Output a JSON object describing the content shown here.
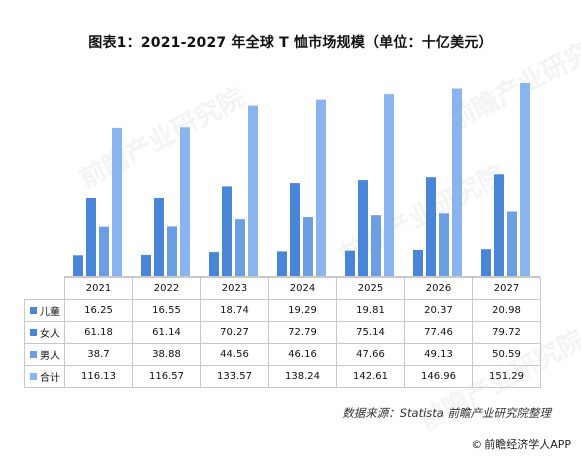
{
  "title": "图表1：2021-2027 年全球 T 恤市场规模（单位：十亿美元）",
  "source": "数据来源：Statista 前瞻产业研究院整理",
  "brand": {
    "icon": "copyright-icon",
    "icon_glyph": "©",
    "text": "前瞻经济学人APP"
  },
  "watermark": "前瞻产业研究院",
  "chart_data": {
    "type": "bar",
    "title": "图表1：2021-2027 年全球 T 恤市场规模（单位：十亿美元）",
    "xlabel": "",
    "ylabel": "",
    "categories": [
      "2021",
      "2022",
      "2023",
      "2024",
      "2025",
      "2026",
      "2027"
    ],
    "series": [
      {
        "name": "儿童",
        "color": "#4a86d8",
        "values": [
          16.25,
          16.55,
          18.74,
          19.29,
          19.81,
          20.37,
          20.98
        ]
      },
      {
        "name": "女人",
        "color": "#4a86d8",
        "values": [
          61.18,
          61.14,
          70.27,
          72.79,
          75.14,
          77.46,
          79.72
        ]
      },
      {
        "name": "男人",
        "color": "#6c9ee3",
        "values": [
          38.7,
          38.88,
          44.56,
          46.16,
          47.66,
          49.13,
          50.59
        ]
      },
      {
        "name": "合计",
        "color": "#8ab4ed",
        "values": [
          116.13,
          116.57,
          133.57,
          138.24,
          142.61,
          146.96,
          151.29
        ]
      }
    ],
    "table": {
      "headers": [
        "2021",
        "2022",
        "2023",
        "2024",
        "2025",
        "2026",
        "2027"
      ],
      "rows": [
        {
          "label": "儿童",
          "cells": [
            "16.25",
            "16.55",
            "18.74",
            "19.29",
            "19.81",
            "20.37",
            "20.98"
          ]
        },
        {
          "label": "女人",
          "cells": [
            "61.18",
            "61.14",
            "70.27",
            "72.79",
            "75.14",
            "77.46",
            "79.72"
          ]
        },
        {
          "label": "男人",
          "cells": [
            "38.7",
            "38.88",
            "44.56",
            "46.16",
            "47.66",
            "49.13",
            "50.59"
          ]
        },
        {
          "label": "合计",
          "cells": [
            "116.13",
            "116.57",
            "133.57",
            "138.24",
            "142.61",
            "146.96",
            "151.29"
          ]
        }
      ]
    },
    "grid": false,
    "legend": "in data table, left column"
  }
}
